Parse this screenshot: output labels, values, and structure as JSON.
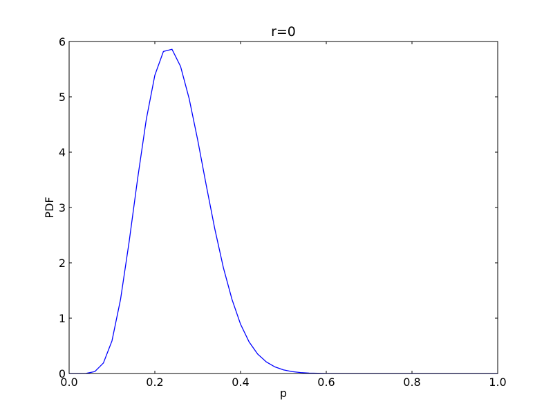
{
  "chart_data": {
    "type": "line",
    "title": "r=0",
    "xlabel": "p",
    "ylabel": "PDF",
    "xlim": [
      0.0,
      1.0
    ],
    "ylim": [
      0,
      6
    ],
    "xticks": [
      "0.0",
      "0.2",
      "0.4",
      "0.6",
      "0.8",
      "1.0"
    ],
    "yticks": [
      "0",
      "1",
      "2",
      "3",
      "4",
      "5",
      "6"
    ],
    "grid": false,
    "colors": {
      "line": "#0000ff",
      "axes": "#000000",
      "background": "#ffffff"
    },
    "series": [
      {
        "x": [
          0.0,
          0.02,
          0.04,
          0.06,
          0.08,
          0.1,
          0.12,
          0.14,
          0.16,
          0.18,
          0.2,
          0.22,
          0.24,
          0.26,
          0.28,
          0.3,
          0.32,
          0.34,
          0.36,
          0.38,
          0.4,
          0.42,
          0.44,
          0.46,
          0.48,
          0.5,
          0.52,
          0.54,
          0.56,
          0.58,
          0.6,
          0.65,
          0.7,
          0.8,
          0.9,
          1.0
        ],
        "y": [
          0.0,
          0.0,
          0.003,
          0.035,
          0.19,
          0.59,
          1.34,
          2.38,
          3.53,
          4.59,
          5.39,
          5.82,
          5.86,
          5.55,
          4.97,
          4.22,
          3.4,
          2.61,
          1.91,
          1.34,
          0.89,
          0.57,
          0.35,
          0.21,
          0.12,
          0.065,
          0.034,
          0.017,
          0.008,
          0.004,
          0.002,
          0.0,
          0.0,
          0.0,
          0.0,
          0.0
        ]
      }
    ]
  }
}
